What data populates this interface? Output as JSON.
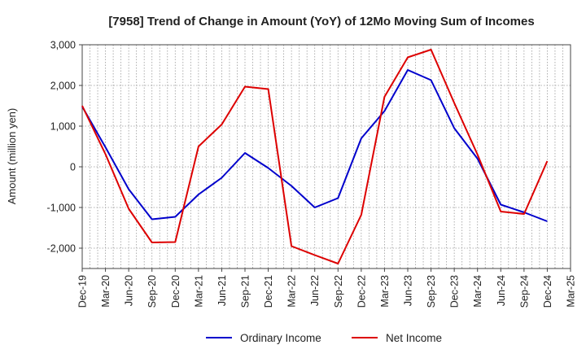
{
  "chart_data": {
    "type": "line",
    "title": "[7958]  Trend of Change in Amount (YoY) of 12Mo Moving Sum of Incomes",
    "xlabel": "",
    "ylabel": "Amount (million yen)",
    "categories": [
      "Dec-19",
      "Mar-20",
      "Jun-20",
      "Sep-20",
      "Dec-20",
      "Mar-21",
      "Jun-21",
      "Sep-21",
      "Dec-21",
      "Mar-22",
      "Jun-22",
      "Sep-22",
      "Dec-22",
      "Mar-23",
      "Jun-23",
      "Sep-23",
      "Dec-23",
      "Mar-24",
      "Jun-24",
      "Sep-24",
      "Dec-24",
      "Mar-25"
    ],
    "ylim": [
      -2500,
      3000
    ],
    "yticks": [
      3000,
      2000,
      1000,
      0,
      -1000,
      -2000
    ],
    "ytick_labels": [
      "3,000",
      "2,000",
      "1,000",
      "0",
      "-1,000",
      "-2,000"
    ],
    "grid": true,
    "legend_position": "bottom",
    "series": [
      {
        "name": "Ordinary Income",
        "color": "#0000cc",
        "values": [
          1480,
          480,
          -550,
          -1290,
          -1230,
          -680,
          -270,
          340,
          -30,
          -470,
          -1000,
          -770,
          700,
          1370,
          2380,
          2130,
          950,
          200,
          -930,
          -1120,
          -1340,
          null
        ]
      },
      {
        "name": "Net Income",
        "color": "#dd0000",
        "values": [
          1500,
          310,
          -1030,
          -1860,
          -1850,
          500,
          1040,
          1970,
          1910,
          -1950,
          -2170,
          -2380,
          -1180,
          1720,
          2690,
          2880,
          1570,
          300,
          -1100,
          -1160,
          140,
          null
        ]
      }
    ]
  }
}
